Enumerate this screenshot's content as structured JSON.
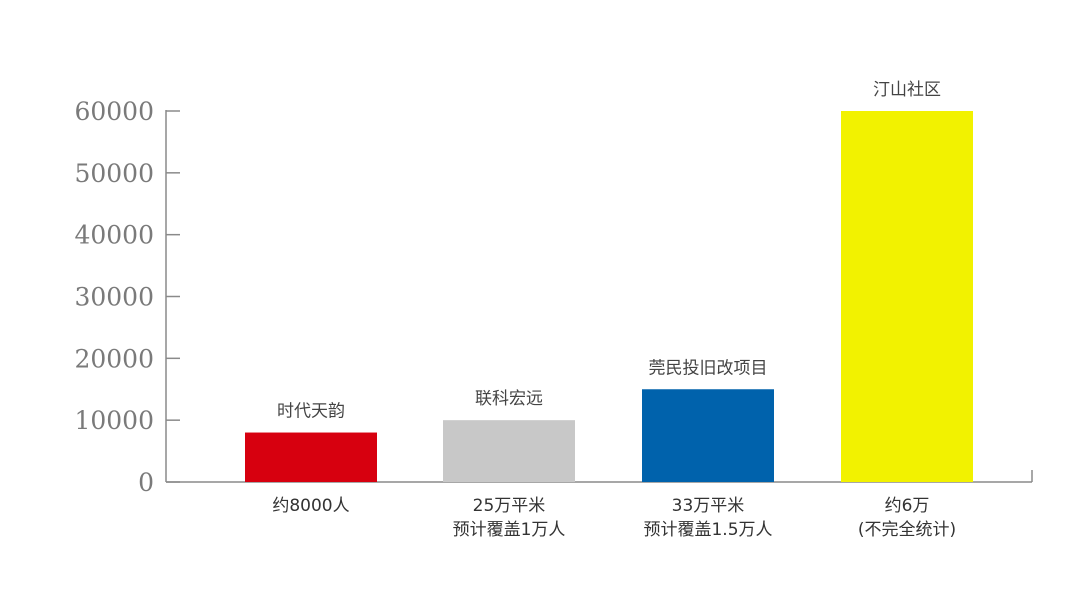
{
  "chart_data": {
    "type": "bar",
    "title": "",
    "xlabel": "",
    "ylabel": "",
    "ylim": [
      0,
      60000
    ],
    "yticks": [
      0,
      10000,
      20000,
      30000,
      40000,
      50000,
      60000
    ],
    "grid": false,
    "categories": [
      {
        "name": "时代天韵",
        "value": 8000,
        "color": "#d7000f",
        "label_lines": [
          "约8000人"
        ]
      },
      {
        "name": "联科宏远",
        "value": 10000,
        "color": "#c8c8c8",
        "label_lines": [
          "25万平米",
          "预计覆盖1万人"
        ]
      },
      {
        "name": "莞民投旧改项目",
        "value": 15000,
        "color": "#0062ac",
        "label_lines": [
          "33万平米",
          "预计覆盖1.5万人"
        ]
      },
      {
        "name": "汀山社区",
        "value": 60000,
        "color": "#f2f200",
        "label_lines": [
          "约6万",
          "(不完全统计)"
        ]
      }
    ]
  }
}
